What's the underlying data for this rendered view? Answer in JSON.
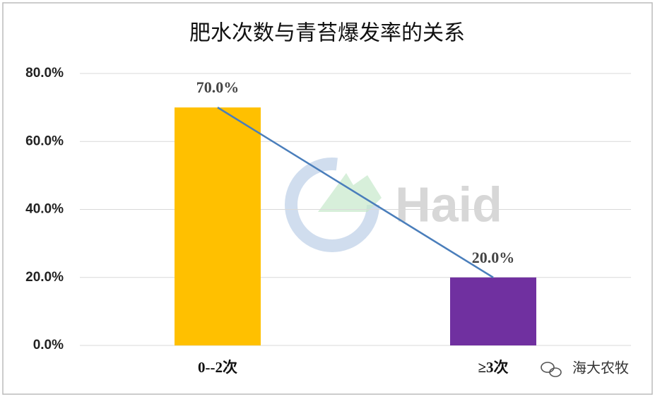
{
  "chart_data": {
    "type": "bar",
    "title": "肥水次数与青苔爆发率的关系",
    "categories": [
      "0--2次",
      "≥3次"
    ],
    "values": [
      70,
      20
    ],
    "value_labels": [
      "70.0%",
      "20.0%"
    ],
    "colors": [
      "#ffc000",
      "#7030a0"
    ],
    "line_color": "#4a7ebb",
    "ylim": [
      0,
      80
    ],
    "yticks": [
      {
        "value": 0,
        "label": "0.0%"
      },
      {
        "value": 20,
        "label": "20.0%"
      },
      {
        "value": 40,
        "label": "40.0%"
      },
      {
        "value": 60,
        "label": "60.0%"
      },
      {
        "value": 80,
        "label": "80.0%"
      }
    ],
    "grid": true,
    "watermark": "Haid",
    "source": "海大农牧"
  }
}
